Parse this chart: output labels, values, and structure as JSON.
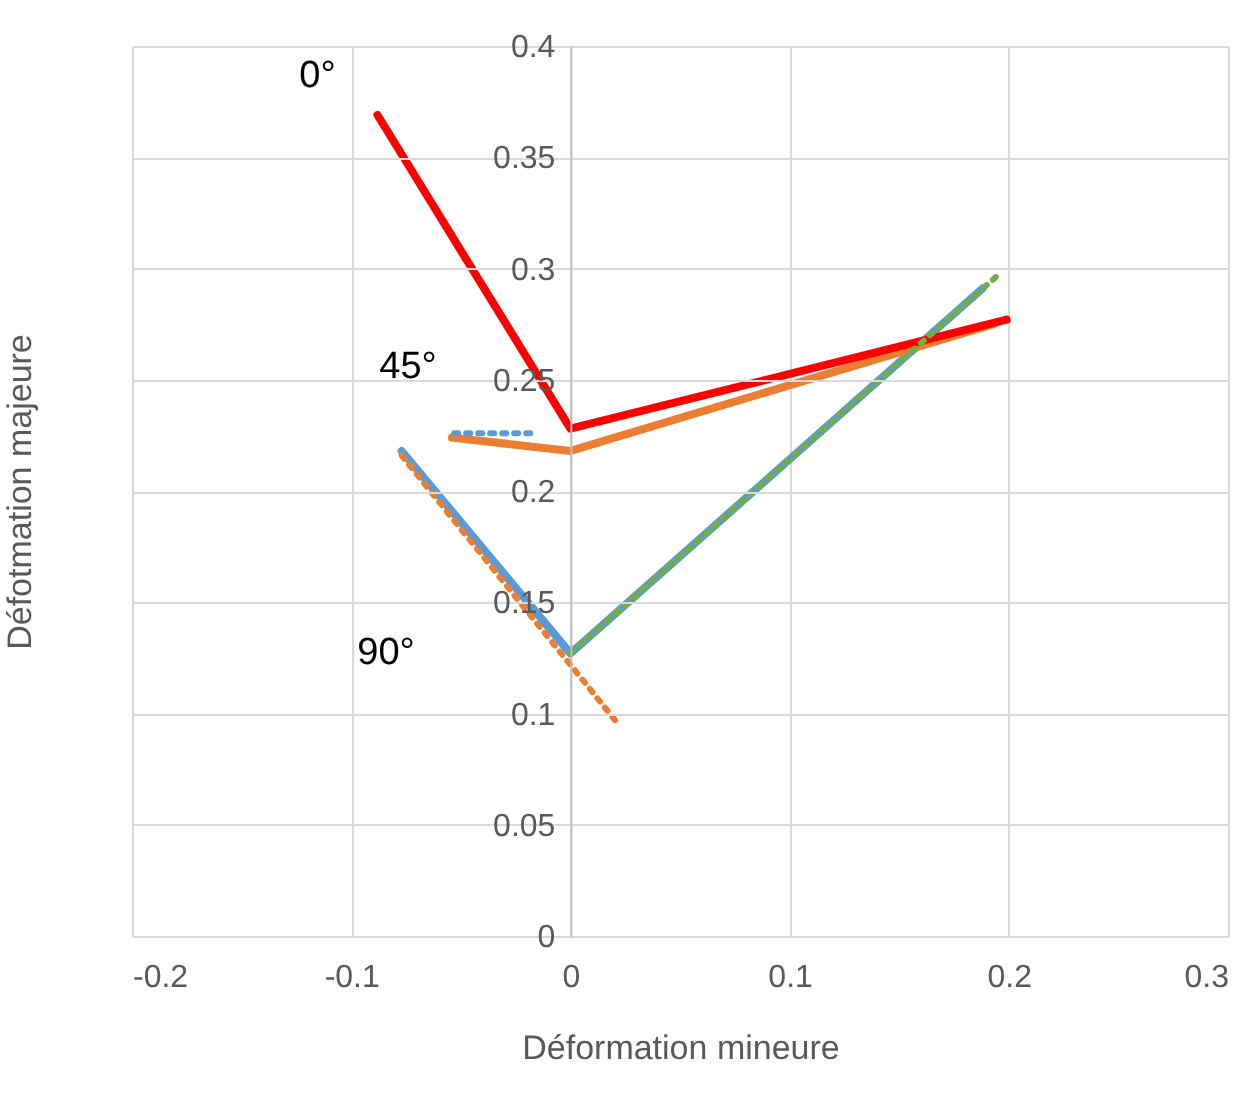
{
  "chart_data": {
    "type": "line",
    "xlabel": "Déformation mineure",
    "ylabel": "Défotmation majeure",
    "xlim": [
      -0.2,
      0.3
    ],
    "xticks": [
      -0.2,
      -0.1,
      0,
      0.1,
      0.2,
      0.3
    ],
    "ylim": [
      0,
      0.4
    ],
    "yticks": [
      0,
      0.05,
      0.1,
      0.15,
      0.2,
      0.25,
      0.3,
      0.35,
      0.4
    ],
    "grid": true,
    "marker": "none",
    "series": [
      {
        "color": "#5b9bd5",
        "line_style": "solid",
        "x": [
          -0.077,
          0,
          0.188
        ],
        "values": [
          0.218,
          0.127,
          0.291
        ]
      },
      {
        "color": "#ed7d31",
        "line_style": "solid",
        "x": [
          -0.054,
          0,
          0.193
        ],
        "values": [
          0.224,
          0.218,
          0.275
        ]
      },
      {
        "color": "#ff0000",
        "line_style": "solid",
        "x": [
          -0.088,
          0,
          0.199
        ],
        "values": [
          0.369,
          0.228,
          0.277
        ]
      },
      {
        "color": "#5b9bd5",
        "line_style": "dotted",
        "x": [
          -0.053,
          -0.017
        ],
        "values": [
          0.226,
          0.226
        ]
      },
      {
        "color": "#ed7d31",
        "line_style": "dotted",
        "x": [
          -0.077,
          0.022
        ],
        "values": [
          0.216,
          0.095
        ]
      },
      {
        "color": "#70ad47",
        "line_style": "dotted",
        "x": [
          0,
          0.195
        ],
        "values": [
          0.127,
          0.297
        ]
      }
    ],
    "annotations": [
      {
        "text": "0°",
        "x": -0.088,
        "y": 0.369
      },
      {
        "text": "45°",
        "x": -0.054,
        "y": 0.224
      },
      "90°"
    ]
  }
}
